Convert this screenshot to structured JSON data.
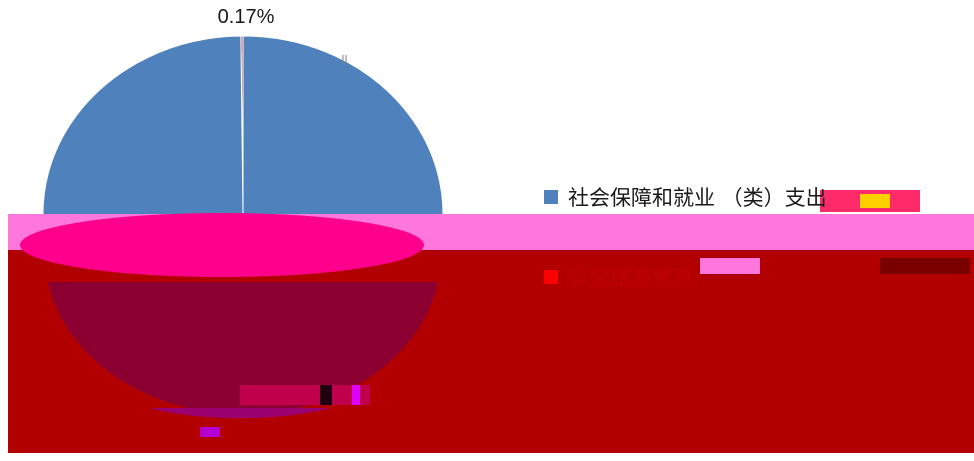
{
  "chart_data": {
    "type": "pie",
    "slices": [
      {
        "label": "社会保障和就业（类）支出",
        "value": 99.83,
        "color": "#4f81bd"
      },
      {
        "label": "文化旅游体育与传媒（类）支出",
        "value": 0.17,
        "color": "#c0504d"
      }
    ],
    "data_labels": [
      "0.17%"
    ],
    "legend_placement": "right"
  },
  "legend": {
    "item1_label": "社会保障和就业 （类）支出",
    "item2_label": "文化旅游体育"
  },
  "colors": {
    "overlay_pink": "#ff77dd",
    "overlay_magenta": "#ff008c",
    "overlay_red": "#b20000",
    "overlay_dark": "#8b0030"
  }
}
